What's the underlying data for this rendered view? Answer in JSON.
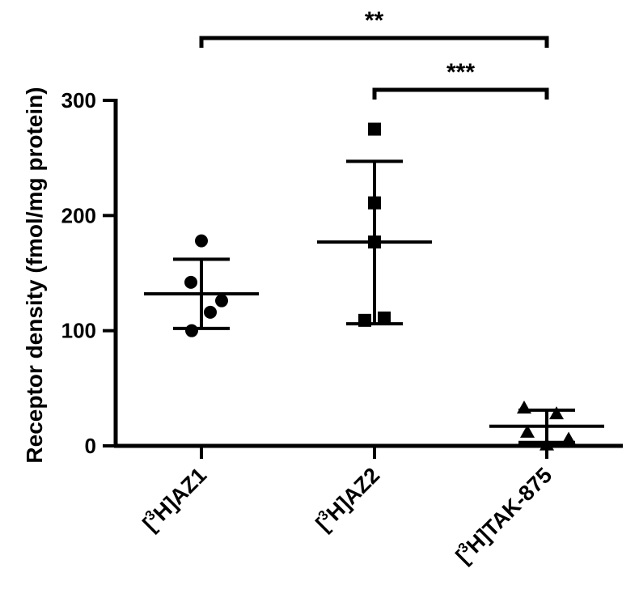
{
  "chart_data": {
    "type": "scatter",
    "title": "",
    "ylabel": "Receptor density (fmol/mg protein)",
    "xlabel": "",
    "ylim": [
      0,
      300
    ],
    "yticks": [
      0,
      100,
      200,
      300
    ],
    "categories": [
      {
        "pre": "[",
        "sup": "3",
        "post": "H]AZ1"
      },
      {
        "pre": "[",
        "sup": "3",
        "post": "H]AZ2"
      },
      {
        "pre": "[",
        "sup": "3",
        "post": "H]TAK-875"
      }
    ],
    "groups": [
      {
        "marker": "circle",
        "points": [
          178,
          142,
          126,
          116,
          100
        ],
        "mean": 132,
        "sd_upper": 162,
        "sd_lower": 102
      },
      {
        "marker": "square",
        "points": [
          275,
          211,
          177,
          111,
          109
        ],
        "mean": 177,
        "sd_upper": 247,
        "sd_lower": 106
      },
      {
        "marker": "triangle",
        "points": [
          33,
          28,
          12,
          6,
          1
        ],
        "mean": 17,
        "sd_upper": 31,
        "sd_lower": 3
      }
    ],
    "significance": [
      {
        "from": 0,
        "to": 2,
        "label": "**"
      },
      {
        "from": 1,
        "to": 2,
        "label": "***"
      }
    ],
    "colors": {
      "marks": "#000000"
    }
  }
}
